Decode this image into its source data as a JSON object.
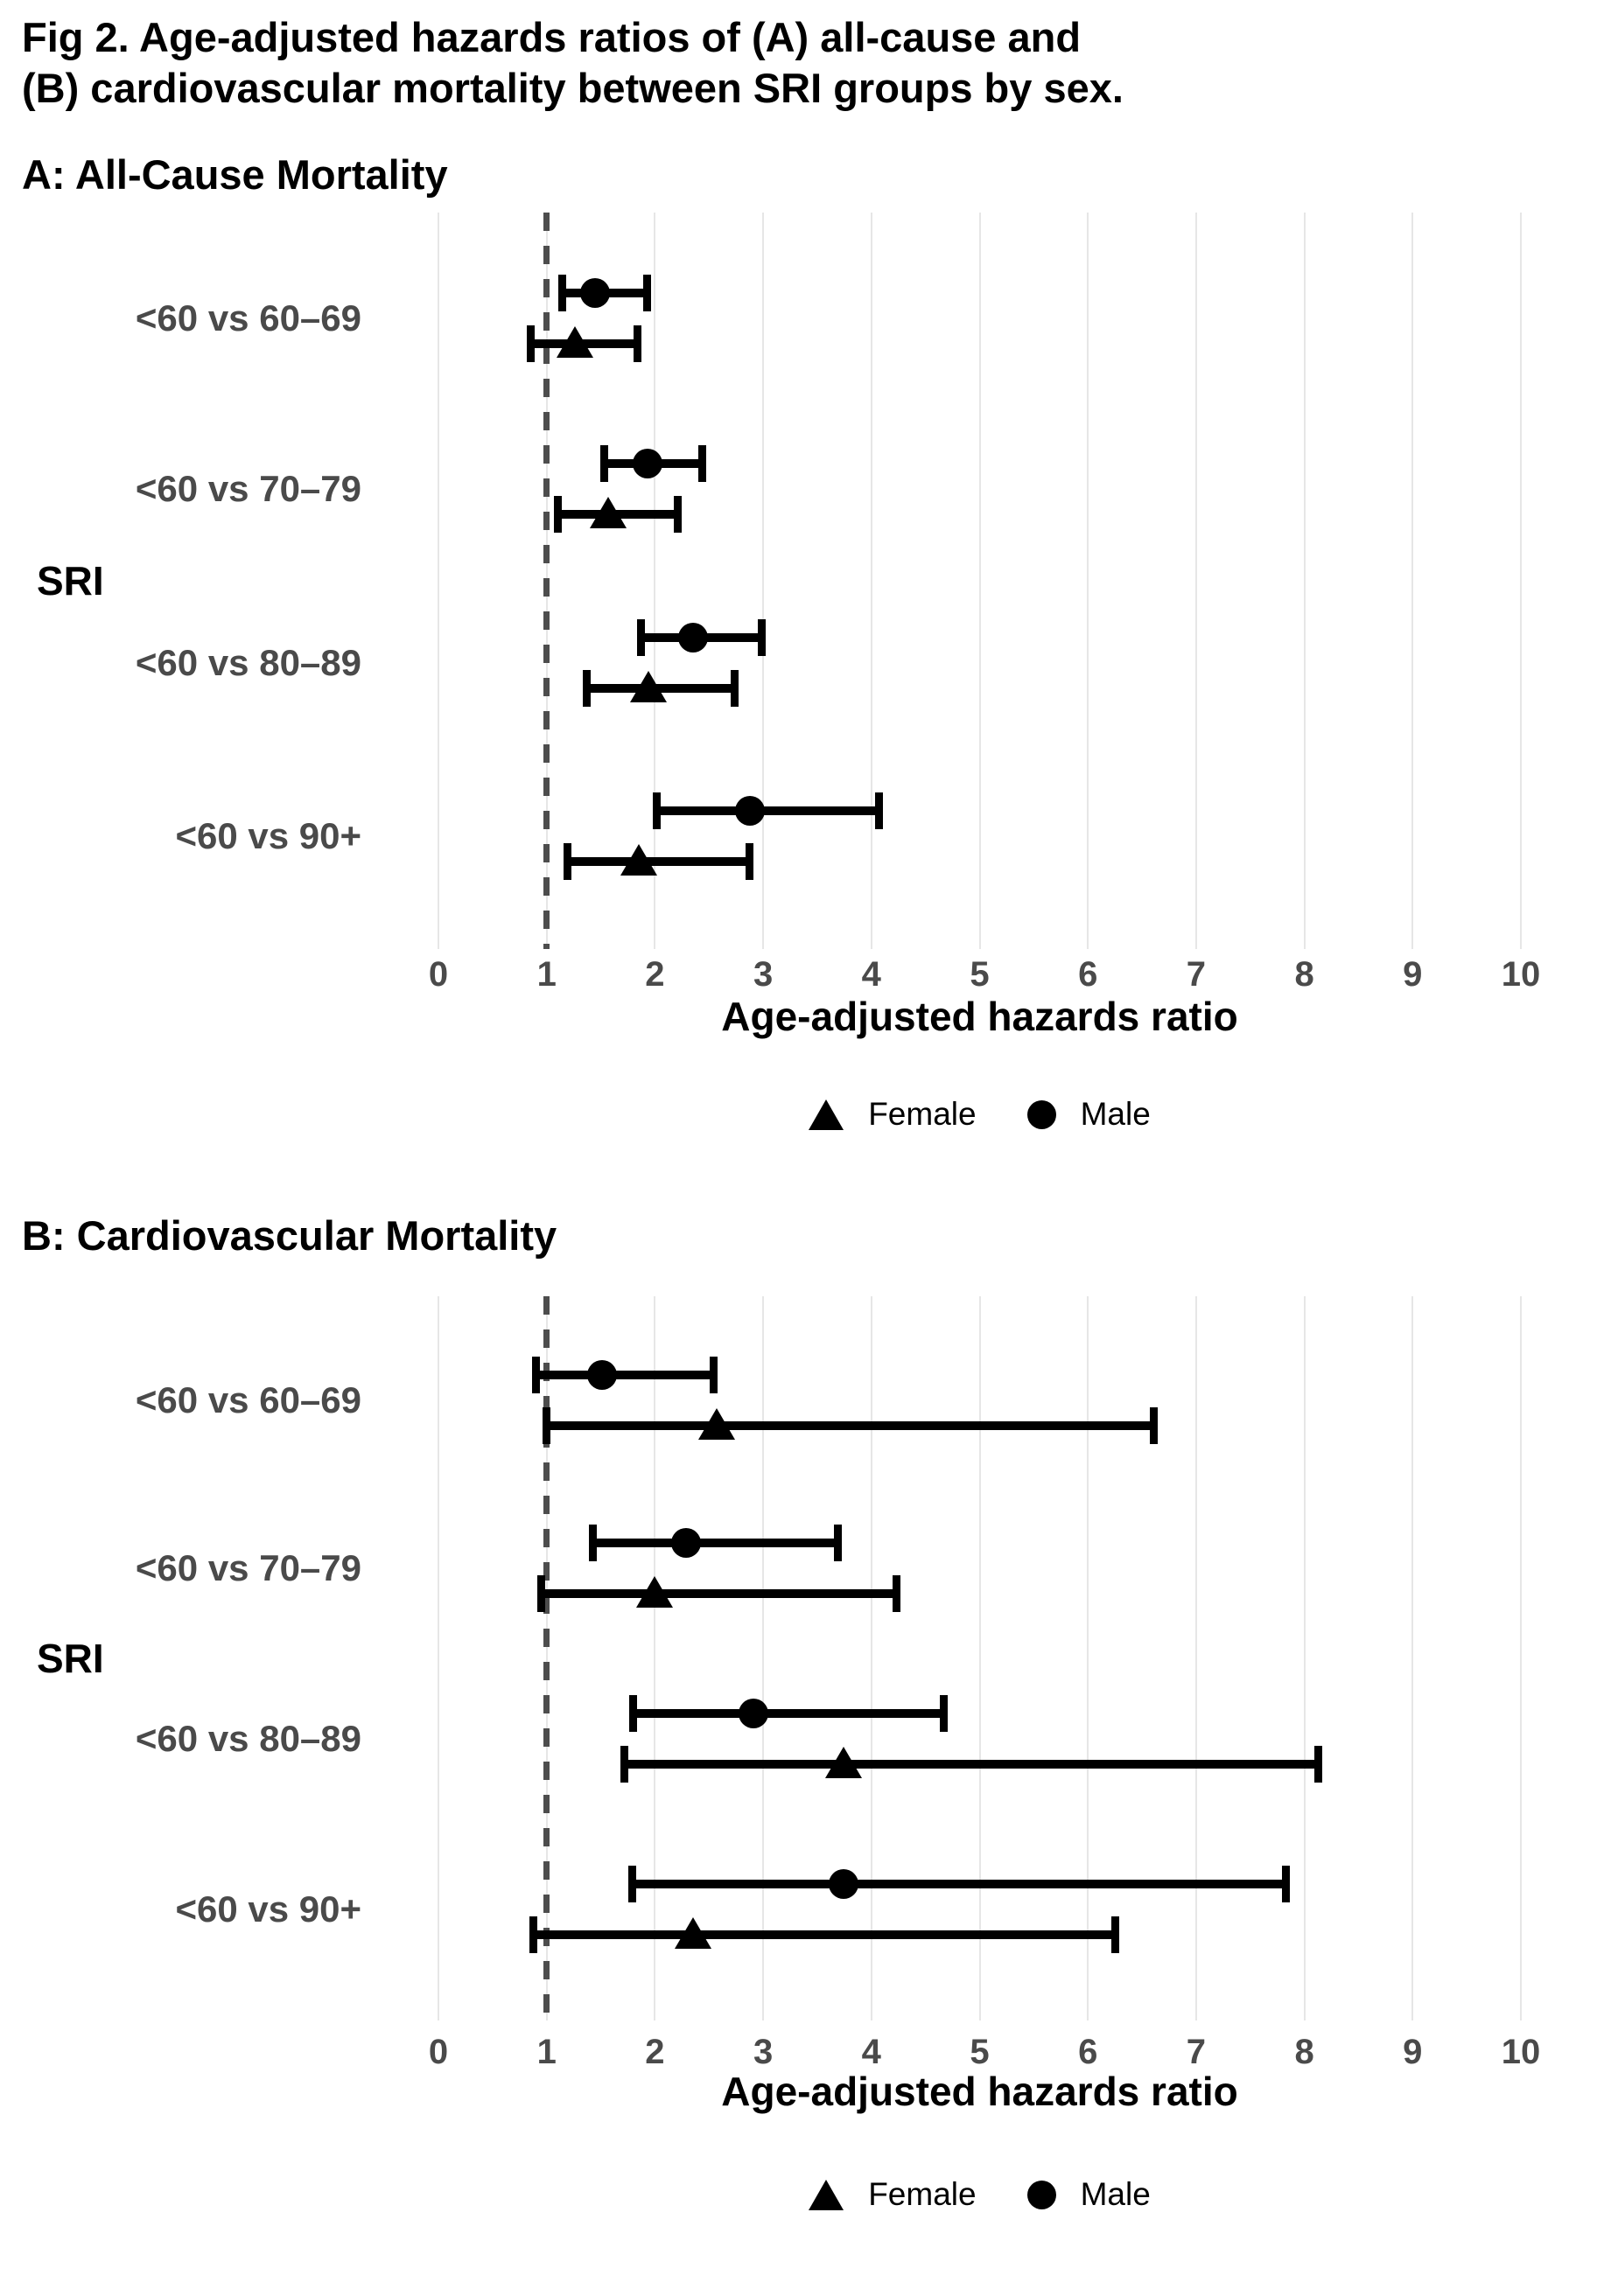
{
  "figure": {
    "title_line1": "Fig 2. Age-adjusted hazards ratios of (A) all-cause and",
    "title_line2": "(B) cardiovascular mortality between SRI groups by sex."
  },
  "legend": {
    "female_label": "Female",
    "male_label": "Male"
  },
  "colors": {
    "marker": "#000000",
    "axis_text": "#4a4a4a",
    "gridline": "#e6e6e6",
    "reference_line": "#4d4d4d",
    "background": "#ffffff"
  },
  "chart_data": [
    {
      "type": "scatter",
      "subtype": "forest-plot-dot-ci",
      "panel_label": "A",
      "title": "A: All-Cause Mortality",
      "xlabel": "Age-adjusted hazards ratio",
      "ylabel": "SRI",
      "categories": [
        "<60 vs 60–69",
        "<60 vs 70–79",
        "<60 vs 80–89",
        "<60 vs 90+"
      ],
      "xticks": [
        0,
        1,
        2,
        3,
        4,
        5,
        6,
        7,
        8,
        9,
        10
      ],
      "xlim": [
        -0.5,
        10.5
      ],
      "reference_line_x": 1,
      "grid": true,
      "legend_position": "bottom",
      "series": [
        {
          "name": "Male",
          "marker": "circle",
          "hr": [
            1.45,
            1.93,
            2.35,
            2.88
          ],
          "ci_low": [
            1.14,
            1.53,
            1.87,
            2.02
          ],
          "ci_high": [
            1.93,
            2.44,
            2.99,
            4.07
          ]
        },
        {
          "name": "Female",
          "marker": "triangle",
          "hr": [
            1.26,
            1.57,
            1.94,
            1.85
          ],
          "ci_low": [
            0.85,
            1.1,
            1.37,
            1.19
          ],
          "ci_high": [
            1.84,
            2.21,
            2.74,
            2.87
          ]
        }
      ]
    },
    {
      "type": "scatter",
      "subtype": "forest-plot-dot-ci",
      "panel_label": "B",
      "title": "B: Cardiovascular Mortality",
      "xlabel": "Age-adjusted hazards ratio",
      "ylabel": "SRI",
      "categories": [
        "<60 vs 60–69",
        "<60 vs 70–79",
        "<60 vs 80–89",
        "<60 vs 90+"
      ],
      "xticks": [
        0,
        1,
        2,
        3,
        4,
        5,
        6,
        7,
        8,
        9,
        10
      ],
      "xlim": [
        -0.5,
        10.5
      ],
      "reference_line_x": 1,
      "grid": true,
      "legend_position": "bottom",
      "series": [
        {
          "name": "Male",
          "marker": "circle",
          "hr": [
            1.51,
            2.29,
            2.91,
            3.74
          ],
          "ci_low": [
            0.9,
            1.43,
            1.8,
            1.79
          ],
          "ci_high": [
            2.54,
            3.69,
            4.67,
            7.83
          ]
        },
        {
          "name": "Female",
          "marker": "triangle",
          "hr": [
            2.57,
            2.0,
            3.74,
            2.35
          ],
          "ci_low": [
            1.0,
            0.95,
            1.72,
            0.88
          ],
          "ci_high": [
            6.61,
            4.23,
            8.13,
            6.25
          ]
        }
      ]
    }
  ]
}
